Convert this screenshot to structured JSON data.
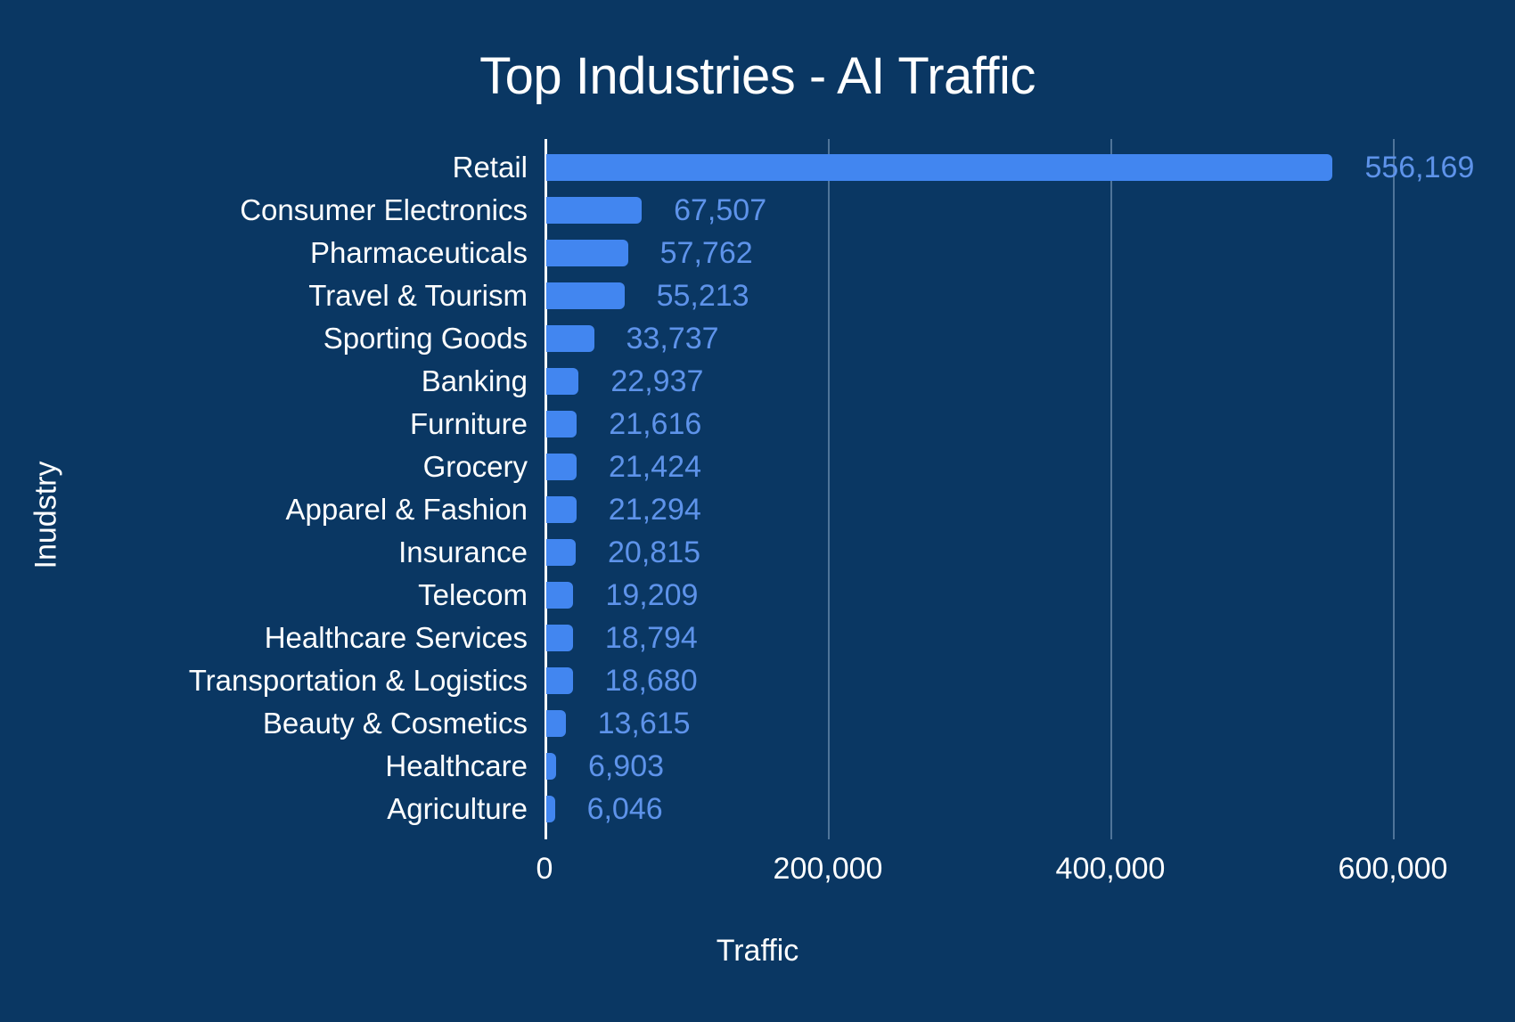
{
  "chart_data": {
    "type": "bar",
    "orientation": "horizontal",
    "title": "Top Industries - AI Traffic",
    "xlabel": "Traffic",
    "ylabel": "Inudstry",
    "xlim": [
      0,
      600000
    ],
    "xticks": [
      "0",
      "200,000",
      "400,000",
      "600,000"
    ],
    "grid": true,
    "legend": null,
    "data_labels": true,
    "bar_color": "#4286f0",
    "label_color": "#5e93ea",
    "background": "#0a3763",
    "categories": [
      "Retail",
      "Consumer Electronics",
      "Pharmaceuticals",
      "Travel & Tourism",
      "Sporting Goods",
      "Banking",
      "Furniture",
      "Grocery",
      "Apparel & Fashion",
      "Insurance",
      "Telecom",
      "Healthcare Services",
      "Transportation & Logistics",
      "Beauty & Cosmetics",
      "Healthcare",
      "Agriculture"
    ],
    "values": [
      556169,
      67507,
      57762,
      55213,
      33737,
      22937,
      21616,
      21424,
      21294,
      20815,
      19209,
      18794,
      18680,
      13615,
      6903,
      6046
    ],
    "value_labels": [
      "556,169",
      "67,507",
      "57,762",
      "55,213",
      "33,737",
      "22,937",
      "21,616",
      "21,424",
      "21,294",
      "20,815",
      "19,209",
      "18,794",
      "18,680",
      "13,615",
      "6,903",
      "6,046"
    ]
  }
}
